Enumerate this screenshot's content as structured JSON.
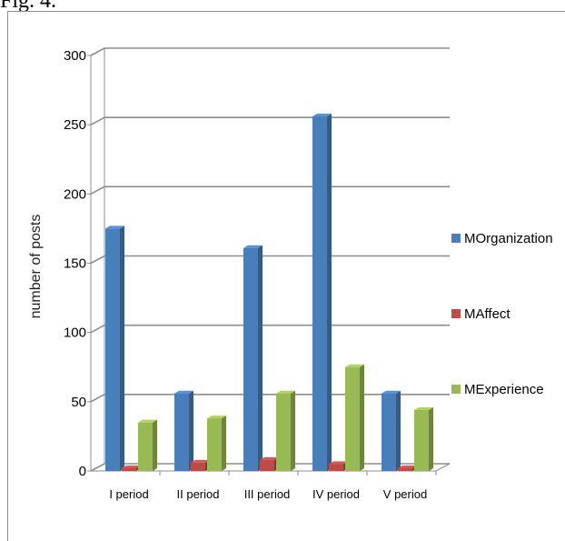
{
  "caption": "Fig. 4.",
  "chart_data": {
    "type": "bar",
    "categories": [
      "I period",
      "II period",
      "III period",
      "IV period",
      "V period"
    ],
    "series": [
      {
        "name": "MOrganization",
        "values": [
          175,
          56,
          161,
          256,
          56
        ],
        "color": "#4a7ebb"
      },
      {
        "name": "MAffect",
        "values": [
          2,
          6,
          8,
          5,
          2
        ],
        "color": "#be4b48"
      },
      {
        "name": "MExperience",
        "values": [
          35,
          38,
          56,
          75,
          44
        ],
        "color": "#98b954"
      }
    ],
    "ylabel": "number of posts",
    "ylim": [
      0,
      300
    ],
    "yticks": [
      0,
      50,
      100,
      150,
      200,
      250,
      300
    ],
    "ytick_labels": [
      "0",
      "50",
      "100",
      "150",
      "200",
      "250",
      "300"
    ],
    "grid": true,
    "legend_position": "right"
  }
}
